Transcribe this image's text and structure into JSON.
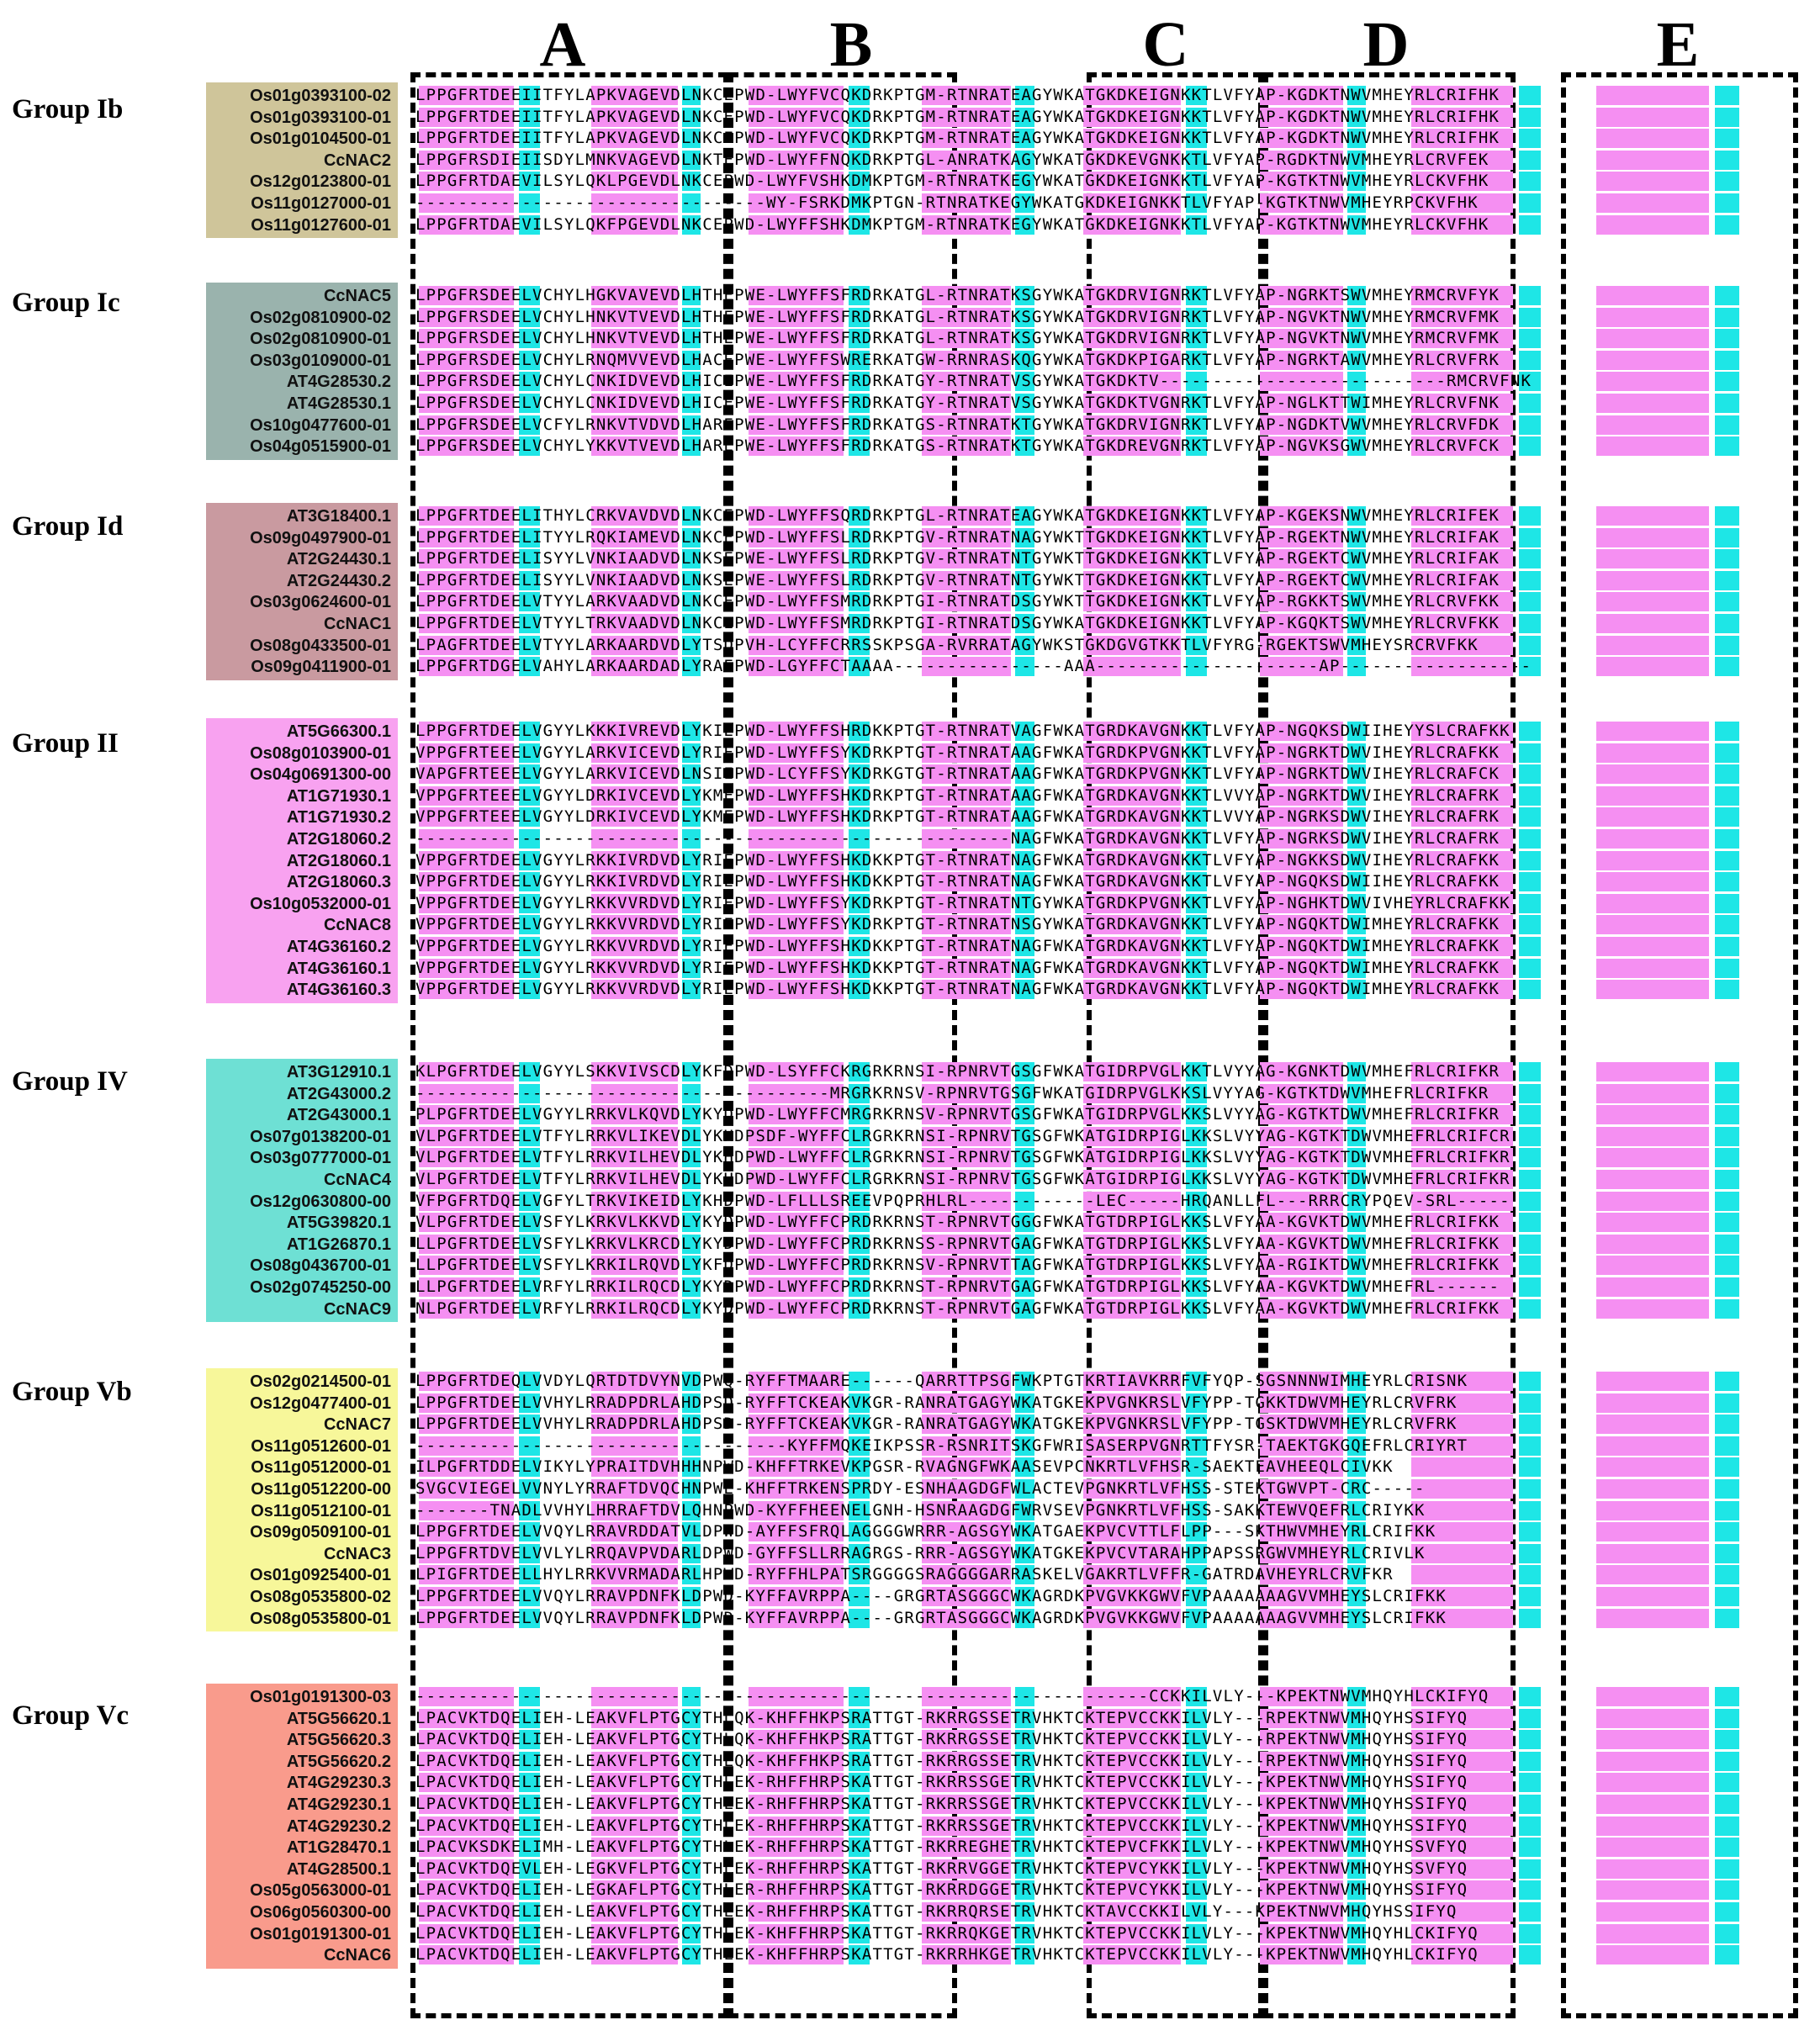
{
  "domains": [
    "A",
    "B",
    "C",
    "D",
    "E"
  ],
  "colors": {
    "identical": "#f58ff2",
    "similar": "#1ee6e6",
    "group_ib": "#cfc59a",
    "group_ic": "#9ab3ad",
    "group_id": "#c99aa0",
    "group_ii": "#f8a2f0",
    "group_iv": "#6ee0d4",
    "group_vb": "#f7f79a",
    "group_vc": "#f99b8c"
  },
  "groups": [
    {
      "title": "Group Ib",
      "color_key": "group_ib",
      "rows": [
        {
          "label": "Os01g0393100-02",
          "seq": "LPPGFRTDEEIITFYLAPKVAGEVDLNKCEPWD-LWYFVCQKDRKPTGM-RTNRATEAGYWKATGKDKEIGNKKTLVFYAP-KGDKTNWVMHEYRLCRIFHK"
        },
        {
          "label": "Os01g0393100-01",
          "seq": "LPPGFRTDEEIITFYLAPKVAGEVDLNKCEPWD-LWYFVCQKDRKPTGM-RTNRATEAGYWKATGKDKEIGNKKTLVFYAP-KGDKTNWVMHEYRLCRIFHK"
        },
        {
          "label": "Os01g0104500-01",
          "seq": "LPPGFRTDEEIITFYLAPKVAGEVDLNKCEPWD-LWYFVCQKDRKPTGM-RTNRATEAGYWKATGKDKEIGNKKTLVFYAP-KGDKTNWVMHEYRLCRIFHK"
        },
        {
          "label": "CcNAC2",
          "seq": "LPPGFRSDIEIISDYLMNKVAGEVDLNKTEPWD-LWYFFNQKDRKPTGL-ANRATKAGYWKATGKDKEVGNKKTLVFYAP-RGDKTNWVMHEYRLCRVFEK"
        },
        {
          "label": "Os12g0123800-01",
          "seq": "LPPGFRTDAEVILSYLQKLPGEVDLNKCEPWD-LWYFVSHKDMKPTGM-RTNRATKEGYWKATGKDKEIGNKKTLVFYAP-KGTKTNWVMHEYRLCKVFHK"
        },
        {
          "label": "Os11g0127000-01",
          "seq": "---------------------------------WY-FSRKDMKPTGN-RTNRATKEGYWKATGKDKEIGNKKTLVFYAP-KGTKTNWVMHEYRPCKVFHK"
        },
        {
          "label": "Os11g0127600-01",
          "seq": "LPPGFRTDAEVILSYLQKFPGEVDLNKCEPWD-LWYFFSHKDMKPTGM-RTNRATKEGYWKATGKDKEIGNKKTLVFYAP-KGTKTNWVMHEYRLCKVFHK"
        }
      ]
    },
    {
      "title": "Group Ic",
      "color_key": "group_ic",
      "rows": [
        {
          "label": "CcNAC5",
          "seq": "LPPGFRSDEELVCHYLHGKVAVEVDLHTHEPWE-LWYFFSFRDRKATGL-RTNRATKSGYWKATGKDRVIGNRKTLVFYAP-NGRKTSWVMHEYRMCRVFYK"
        },
        {
          "label": "Os02g0810900-02",
          "seq": "LPPGFRSDEELVCHYLHNKVTVEVDLHTHEPWE-LWYFFSFRDRKATGL-RTNRATKSGYWKATGKDRVIGNRKTLVFYAP-NGVKTNWVMHEYRMCRVFMK"
        },
        {
          "label": "Os02g0810900-01",
          "seq": "LPPGFRSDEELVCHYLHNKVTVEVDLHTHEPWE-LWYFFSFRDRKATGL-RTNRATKSGYWKATGKDRVIGNRKTLVFYAP-NGVKTNWVMHEYRMCRVFMK"
        },
        {
          "label": "Os03g0109000-01",
          "seq": "LPPGFRSDEELVCHYLRNQMVVEVDLHACEPWE-LWYFFSWRERKATGW-RRNRASKQGYWKATGKDKPIGARKTLVFYAP-NGRKTAWVMHEYRLCRVFRK"
        },
        {
          "label": "AT4G28530.2",
          "seq": "LPPGFRSDEELVCHYLCNKIDVEVDLHICEPWE-LWYFFSFRDRKATGY-RTNRATVSGYWKATGKDKTV---------------------------RMCRVFNK"
        },
        {
          "label": "AT4G28530.1",
          "seq": "LPPGFRSDEELVCHYLCNKIDVEVDLHICEPWE-LWYFFSFRDRKATGY-RTNRATVSGYWKATGKDKTVGNRKTLVFYAP-NGLKTTWIMHEYRLCRVFNK"
        },
        {
          "label": "Os10g0477600-01",
          "seq": "LPPGFRSDEELVCFYLRNKVTVDVDLHAREPWE-LWYFFSFRDRKATGS-RTNRATKTGYWKATGKDRVIGNRKTLVFYAP-NGDKTVWVMHEYRLCRVFDK"
        },
        {
          "label": "Os04g0515900-01",
          "seq": "LPPGFRSDEELVCHYLYKKVTVEVDLHAREPWE-LWYFFSFRDRKATGS-RTNRATKTGYWKATGKDREVGNRKTLVFYAP-NGVKSGWVMHEYRLCRVFCK"
        }
      ]
    },
    {
      "title": "Group Id",
      "color_key": "group_id",
      "rows": [
        {
          "label": "AT3G18400.1",
          "seq": "LPPGFRTDEELITHYLCRKVAVDVDLNKCEPWD-LWYFFSQRDRKPTGL-RTNRATEAGYWKATGKDKEIGNKKTLVFYAP-KGEKSNWVMHEYRLCRIFEK"
        },
        {
          "label": "Os09g0497900-01",
          "seq": "LPPGFRTDEELITYYLRQKIAMEVDLNKCEPWD-LWYFFSLRDRKPTGV-RTNRATNAGYWKTTGKDKEIGNKKTLVFYAP-RGEKTNWVMHEYRLCRIFAK"
        },
        {
          "label": "AT2G24430.1",
          "seq": "LPPGFRTDEELISYYLVNKIAADVDLNKSEPWE-LWYFFSLRDRKPTGV-RTNRATNTGYWKTTGKDKEIGNKKTLVFYAP-RGEKTCWVMHEYRLCRIFAK"
        },
        {
          "label": "AT2G24430.2",
          "seq": "LPPGFRTDEELISYYLVNKIAADVDLNKSEPWE-LWYFFSLRDRKPTGV-RTNRATNTGYWKTTGKDKEIGNKKTLVFYAP-RGEKTCWVMHEYRLCRIFAK"
        },
        {
          "label": "Os03g0624600-01",
          "seq": "LPPGFRTDEELVTYYLARKVAADVDLNKCEPWD-LWYFFSMRDRKPTGI-RTNRATDSGYWKTTGKDKEIGNKKTLVFYAP-RGKKTSWVMHEYRLCRVFKK"
        },
        {
          "label": "CcNAC1",
          "seq": "LPPGFRTDEELVTYYLTRKVAADVDLNKCEPWD-LWYFFSMRDRKPTGI-RTNRATDSGYWKATGKDKEIGNKKTLVFYAP-KGQKTSWVMHEYRLCRVFKK"
        },
        {
          "label": "Os08g0433500-01",
          "seq": "LPAGFRTDEELVTYYLARKAARDVDLYTSDPVH-LCYFFCRRSSKPSGA-RVRRATAGYWKSTGKDGVGTKKTLVFYRG-RGEKTSWVMHEYSRCRVFKK"
        },
        {
          "label": "Os09g0411900-01",
          "seq": "LPPGFRTDGELVAHYLARKAARDADLYRAEPWD-LGYFFCTAAAA----------------AAA---------------------AP------------------"
        }
      ]
    },
    {
      "title": "Group II",
      "color_key": "group_ii",
      "rows": [
        {
          "label": "AT5G66300.1",
          "seq": "LPPGFRTDEELVGYYLKKKIVREVDLYKIEPWD-LWYFFSHRDKKPTGT-RTNRATVAGFWKATGRDKAVGNKKTLVFYAP-NGQKSDWIIHEYYSLCRAFKK"
        },
        {
          "label": "Os08g0103900-01",
          "seq": "VPPGFRTEEELVGYYLARKVICEVDLYRIEPWD-LWYFFSYKDRKPTGT-RTNRATAAGFWKATGRDKPVGNKKTLVFYAP-NGRKTDWVIHEYRLCRAFKK"
        },
        {
          "label": "Os04g0691300-00",
          "seq": "VAPGFRTEEELVGYYLARKVICEVDLNSIEPWD-LCYFFSYKDRKGTGT-RTNRATAAGFWKATGRDKPVGNKKTLVFYAP-NGRKTDWVIHEYRLCRAFCK"
        },
        {
          "label": "AT1G71930.1",
          "seq": "VPPGFRTEEELVGYYLDRKIVCEVDLYKMEPWD-LWYFFSHKDRKPTGT-RTNRATAAGFWKATGRDKAVGNKKTLVVYAP-NGRKTDWVIHEYRLCRAFRK"
        },
        {
          "label": "AT1G71930.2",
          "seq": "VPPGFRTEEELVGYYLDRKIVCEVDLYKMEPWD-LWYFFSHKDRKPTGT-RTNRATAAGFWKATGRDKAVGNKKTLVVYAP-NGRKSDWVIHEYRLCRAFRK"
        },
        {
          "label": "AT2G18060.2",
          "seq": "--------------------------------------------------------NAGFWKATGRDKAVGNKKTLVFYAP-NGRKSDWVIHEYRLCRAFRK"
        },
        {
          "label": "AT2G18060.1",
          "seq": "VPPGFRTDEELVGYYLRKKIVRDVDLYRIEPWD-LWYFFSHKDKKPTGT-RTNRATNAGFWKATGRDKAVGNKKTLVFYAP-NGKKSDWVIHEYRLCRAFKK"
        },
        {
          "label": "AT2G18060.3",
          "seq": "VPPGFRTDEELVGYYLRKKIVRDVDLYRIEPWD-LWYFFSHKDKKPTGT-RTNRATNAGFWKATGRDKAVGNKKTLVFYAP-NGQKSDWIIHEYRLCRAFKK"
        },
        {
          "label": "Os10g0532000-01",
          "seq": "VPPGFRTDEELVGYYLRKKVVRDVDLYRIEPWD-LWYFFSYKDRKPTGT-RTNRATNTGYWKATGRDKPVGNKKTLVFYAP-NGHKTDWVIVHEYRLCRAFKK"
        },
        {
          "label": "CcNAC8",
          "seq": "VPPGFRTDEELVGYYLRKKVVRDVDLYRIEPWD-LWYFFSYKDRKPTGT-RTNRATNSGYWKATGRDKAVGNKKTLVFYAP-NGQKTDWIMHEYRLCRAFKK"
        },
        {
          "label": "AT4G36160.2",
          "seq": "VPPGFRTDEELVGYYLRKKVVRDVDLYRIEPWD-LWYFFSHKDKKPTGT-RTNRATNAGFWKATGRDKAVGNKKTLVFYAP-NGQKTDWIMHEYRLCRAFKK"
        },
        {
          "label": "AT4G36160.1",
          "seq": "VPPGFRTDEELVGYYLRKKVVRDVDLYRIEPWD-LWYFFSHKDKKPTGT-RTNRATNAGFWKATGRDKAVGNKKTLVFYAP-NGQKTDWIMHEYRLCRAFKK"
        },
        {
          "label": "AT4G36160.3",
          "seq": "VPPGFRTDEELVGYYLRKKVVRDVDLYRIEPWD-LWYFFSHKDKKPTGT-RTNRATNAGFWKATGRDKAVGNKKTLVFYAP-NGQKTDWIMHEYRLCRAFKK"
        }
      ]
    },
    {
      "title": "Group IV",
      "color_key": "group_iv",
      "rows": [
        {
          "label": "AT3G12910.1",
          "seq": "KLPGFRTDEELVGYYLSKKVIVSCDLYKFDPWD-LSYFFCKRGRKRNSI-RPNRVTGSGFWKATGIDRPVGLKKTLVYYAG-KGNKTDWVMHEFRLCRIFKR"
        },
        {
          "label": "AT2G43000.2",
          "seq": "---------------------------------------MRGRKRNSV-RPNRVTGSGFWKATGIDRPVGLKKSLVYYAG-KGTKTDWVMHEFRLCRIFKR"
        },
        {
          "label": "AT2G43000.1",
          "seq": "PLPGFRTDEELVGYYLRRKVLKQVDLYKYDPWD-LWYFFCMRGRKRNSV-RPNRVTGSGFWKATGIDRPVGLKKSLVYYAG-KGTKTDWVMHEFRLCRIFKR"
        },
        {
          "label": "Os07g0138200-01",
          "seq": "VLPGFRTDEELVTFYLRRKVLIKEVDLYKHDPSDF-WYFFCLRGRKRNSI-RPNRVTGSGFWKATGIDRPIGLKKSLVYYAG-KGTKTDWVMHEFRLCRIFCR"
        },
        {
          "label": "Os03g0777000-01",
          "seq": "VLPGFRTDEELVTFYLRRKVILHEVDLYKHDPWD-LWYFFCLRGRKRNSI-RPNRVTGSGFWKATGIDRPIGLKKSLVYYAG-KGTKTDWVMHEFRLCRIFKR"
        },
        {
          "label": "CcNAC4",
          "seq": "VLPGFRTDEELVTFYLRRKVILHEVDLYKHDPWD-LWYFFCLRGRKRNSI-RPNRVTGSGFWKATGIDRPIGLKKSLVYYAG-KGTKTDWVMHEFRLCRIFKR"
        },
        {
          "label": "Os12g0630800-00",
          "seq": "VFPGFRTDQELVGFYLTRKVIKEIDLYKHDPWD-LFLLLSREEVPQPRHLRL------------LEC-----HRQANLLFL---RRRCRYPQEV-SRL-----"
        },
        {
          "label": "AT5G39820.1",
          "seq": "VLPGFRTDEELVSFYLKRKVLKKVDLYKYDPWD-LWYFFCPRDRKRNST-RPNRVTGGGFWKATGTDRPIGLKKSLVFYAA-KGVKTDWVMHEFRLCRIFKK"
        },
        {
          "label": "AT1G26870.1",
          "seq": "LLPGFRTDEELVSFYLKRKVLKRCDLYKYDPWD-LWYFFCPRDRKRNSS-RPNRVTGAGFWKATGTDRPIGLKKSLVFYAA-KGVKTDWVMHEFRLCRIFKK"
        },
        {
          "label": "Os08g0436700-01",
          "seq": "LLPGFRTDEELVSFYLKRKILRQVDLYKFDPWD-LWYFFCPRDRKRNSV-RPNRVTTAGFWKATGTDRPIGLKKSLVFYAA-RGIKTDWVMHEFRLCRIFKK"
        },
        {
          "label": "Os02g0745250-00",
          "seq": "LLPGFRTDEELVRFYLRRKILRQCDLYKYDPWD-LWYFFCPRDRKRNST-RPNRVTGAGFWKATGTDRPIGLKKSLVFYAA-KGVKTDWVMHEFRL------"
        },
        {
          "label": "CcNAC9",
          "seq": "NLPGFRTDEELVRFYLRRKILRQCDLYKYDPWD-LWYFFCPRDRKRNST-RPNRVTGAGFWKATGTDRPIGLKKSLVFYAA-KGVKTDWVMHEFRLCRIFKK"
        }
      ]
    },
    {
      "title": "Group Vb",
      "color_key": "group_vb",
      "rows": [
        {
          "label": "Os02g0214500-01",
          "seq": "LPPGFRTDEQLVVDYLQRTDTDVYNVDPWQ-RYFFTMAARE------QARRTTPSGFWKPTGTKRTIAVKRRFVFYQP-SGSNNNWIMHEYRLCRISNK"
        },
        {
          "label": "Os12g0477400-01",
          "seq": "LPPGFRTDEELVVHYLRRADPDRLAHDPSD-RYFFTCKEAKVKGR-RANRATGAGYWKATGKEKPVGNKRSLVFYPP-TGKKTDWVMHEYRLCRVFRK"
        },
        {
          "label": "CcNAC7",
          "seq": "LPPGFRTDEELVVHYLRRADPDRLAHDPSD-RYFFTCKEAKVKGR-RANRATGAGYWKATGKEKPVGNKRSLVFYPP-TGSKTDWVMHEYRLCRVFRK"
        },
        {
          "label": "Os11g0512600-01",
          "seq": "-----------------------------------KYFFMQKEIKPSSR-RSNRITSKGFWRISASERPVGNRTTFYSR-TAEKTGKGQEFRLCRIYRT"
        },
        {
          "label": "Os11g0512000-01",
          "seq": "ILPGFRTDDELVIKYLYPRAITDVHHHNPWD-KHFFTRKEVKPGSR-RVAGNGFWKAASEVPCNKRTLVFHSR-SAEKTEAVHEEQLCIVKK"
        },
        {
          "label": "Os11g0512200-00",
          "seq": "SVGCVIEGELVVNYLYRRAFTDVQCHNPWE-KHFFTRKENSPRDY-ESNHAAGDGFWLACTEVPGNKRTLVFHSS-STEKTGWVPT-CRC-----"
        },
        {
          "label": "Os11g0512100-01",
          "seq": "-------TNADLVVHYLHRRAFTDVLQHNPWD-KYFFHEENELGNH-HSNRAAGDGFWRVSEVPGNKRTLVFHSS-SAKKTEWVQEFRLCRIYKK"
        },
        {
          "label": "Os09g0509100-01",
          "seq": "LPPGFRTDEELVVQYLRRAVRDDATVLDPWD-AYFFSFRQLAGGGGWRRR-AGSGYWKATGAEKPVCVTTLFLPP---SKTHWVMHEYRLCRIFKK"
        },
        {
          "label": "CcNAC3",
          "seq": "LPPGFRTDVELVVLYLRRQAVPVDARLDPWD-GYFFSLLRRAGRGS-RRR-AGSGYWKATGKEKPVCVTARAHPPAPSSRGWVMHEYRLCRIVLK"
        },
        {
          "label": "Os01g0925400-01",
          "seq": "LPIGFRTDEELLHYLRRKVVRMADARLHPWD-RYFFHLPATSRGGGGSRAGGGGARRASKELVGAKRTLVFFR-GATRDAVHEYRLCRVFKR"
        },
        {
          "label": "Os08g0535800-02",
          "seq": "LPPGFRTDEELVVQYLRRAVPDNFKLDPWD-KYFFAVRPPA----GRGRTASGGGCWKAGRDKPVGVKKGWVFVPAAAAAAAGVVMHEYSLCRIFKK"
        },
        {
          "label": "Os08g0535800-01",
          "seq": "LPPGFRTDEELVVQYLRRAVPDNFKLDPWD-KYFFAVRPPA----GRGRTASGGGCWKAGRDKPVGVKKGWVFVPAAAAAAAGVVMHEYSLCRIFKK"
        }
      ]
    },
    {
      "title": "Group Vc",
      "color_key": "group_vc",
      "rows": [
        {
          "label": "Os01g0191300-03",
          "seq": "---------------------------------------------------------------------CCKKILVLY---KPEKTNWVMHQYHLCKIFYQ"
        },
        {
          "label": "AT5G56620.1",
          "seq": "LPACVKTDQELIEH-LEAKVFLPTGCYTHLQK-KHFFHKPSRATTGT-RKRRGSSETRVHKTCKTEPVCCKKILVLY---RPEKTNWVMHQYHSSIFYQ"
        },
        {
          "label": "AT5G56620.3",
          "seq": "LPACVKTDQELIEH-LEAKVFLPTGCYTHLQK-KHFFHKPSRATTGT-RKRRGSSETRVHKTCKTEPVCCKKILVLY---RPEKTNWVMHQYHSSIFYQ"
        },
        {
          "label": "AT5G56620.2",
          "seq": "LPACVKTDQELIEH-LEAKVFLPTGCYTHLQK-KHFFHKPSRATTGT-RKRRGSSETRVHKTCKTEPVCCKKILVLY---RPEKTNWVMHQYHSSIFYQ"
        },
        {
          "label": "AT4G29230.3",
          "seq": "LPACVKTDQELIEH-LEAKVFLPTGCYTHLEK-RHFFHRPSKATTGT-RKRRSSGETRVHKTCKTEPVCCKKILVLY---KPEKTNWVMHQYHSSIFYQ"
        },
        {
          "label": "AT4G29230.1",
          "seq": "LPACVKTDQELIEH-LEAKVFLPTGCYTHLEK-RHFFHRPSKATTGT-RKRRSSGETRVHKTCKTEPVCCKKILVLY---KPEKTNWVMHQYHSSIFYQ"
        },
        {
          "label": "AT4G29230.2",
          "seq": "LPACVKTDQELIEH-LEAKVFLPTGCYTHLEK-RHFFHRPSKATTGT-RKRRSSGETRVHKTCKTEPVCCKKILVLY---KPEKTNWVMHQYHSSIFYQ"
        },
        {
          "label": "AT1G28470.1",
          "seq": "LPACVKSDKELIMH-LEAKVFLPTGCYTHLEK-RHFFHRPSKATTGT-RKRREGHETRVHKTCKTEPVCFKKILVLY---KPEKTNWVMHQYHSSVFYQ"
        },
        {
          "label": "AT4G28500.1",
          "seq": "LPACVKTDQEVLEH-LEGKVFLPTGCYTHLEK-RHFFHRPSKATTGT-RKRRVGGETRVHKTCKTEPVCYKKILVLY---KPEKTNWVMHQYHSSVFYQ"
        },
        {
          "label": "Os05g0563000-01",
          "seq": "LPACVKTDQELIEH-LEGKAFLPTGCYTHLER-RHFFHRPSKATTGT-RKRRDGGETRVHKTCKTEPVCYKKILVLY---KPEKTNWVMHQYHSSIFYQ"
        },
        {
          "label": "Os06g0560300-00",
          "seq": "LPACVKTDQELIEH-LEAKVFLPTGCYTHLEK-RHFFHRPSKATTGT-RKRRQRSETRVHKTCKTAVCCKKILVLY---KPEKTNWVMHQYHSSIFYQ"
        },
        {
          "label": "Os01g0191300-01",
          "seq": "LPACVKTDQELIEH-LEAKVFLPTGCYTHLEK-KHFFHRPSKATTGT-RKRRQKGETRVHKTCKTEPVCCKKILVLY---KPEKTNWVMHQYHLCKIFYQ"
        },
        {
          "label": "CcNAC6",
          "seq": "LPACVKTDQELIEH-LEAKVFLPTGCYTHLEK-KHFFHRPSKATTGT-RKRRHKGETRVHKTCKTEPVCCKKILVLY---KPEKTNWVMHQYHLCKIFYQ"
        }
      ]
    }
  ]
}
